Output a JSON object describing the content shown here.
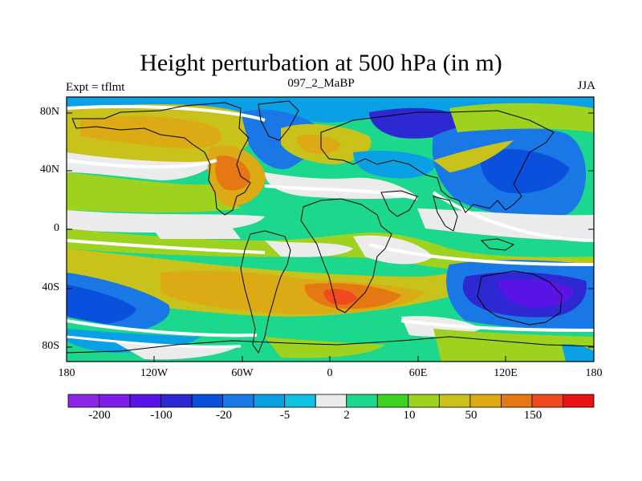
{
  "title": "Height perturbation at 500 hPa (in m)",
  "subtitle_left": "Expt = tflmt",
  "subtitle_center": "097_2_MaBP",
  "subtitle_right": "JJA",
  "lat_labels": [
    "80N",
    "40N",
    "0",
    "40S",
    "80S"
  ],
  "lon_labels": [
    "180",
    "120W",
    "60W",
    "0",
    "60E",
    "120E",
    "180"
  ],
  "colorbar": {
    "colors": [
      "#8c26e6",
      "#7d1ee6",
      "#5a14e6",
      "#2d28d2",
      "#0a50dc",
      "#1978e6",
      "#0aa0e6",
      "#10c0e0",
      "#ececec",
      "#1cd88c",
      "#3cd222",
      "#9ed21e",
      "#c8c21a",
      "#dcaa14",
      "#e67814",
      "#f04a1e",
      "#e61414"
    ],
    "labels": [
      "-200",
      "-100",
      "-20",
      "-5",
      "2",
      "10",
      "50",
      "150"
    ]
  }
}
